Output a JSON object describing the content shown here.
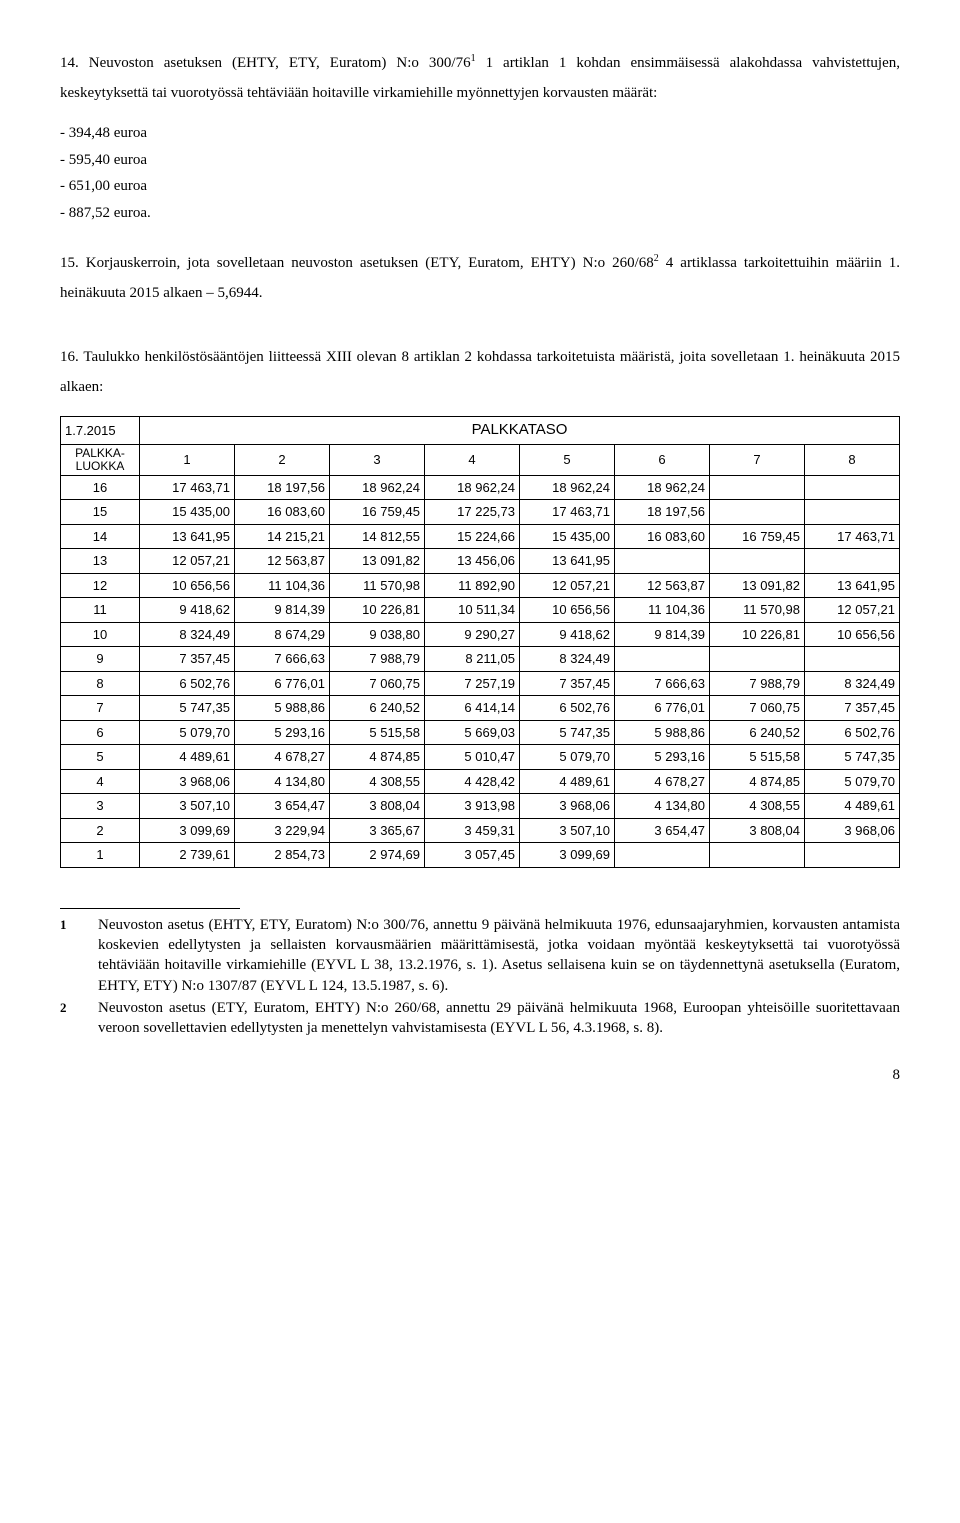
{
  "section14": {
    "text": "14. Neuvoston asetuksen (EHTY, ETY, Euratom) N:o 300/76¹ 1 artiklan 1 kohdan ensimmäisessä alakohdassa vahvistettujen, keskeytyksettä tai vuorotyössä tehtäviään hoitaville virkamiehille myönnettyjen korvausten määrät:"
  },
  "amounts": [
    "- 394,48 euroa",
    "- 595,40 euroa",
    "- 651,00 euroa",
    "- 887,52 euroa."
  ],
  "section15": {
    "text": "15. Korjauskerroin, jota sovelletaan neuvoston asetuksen (ETY, Euratom, EHTY) N:o 260/68² 4 artiklassa tarkoitettuihin määriin 1. heinäkuuta 2015 alkaen – 5,6944."
  },
  "section16": {
    "text": "16. Taulukko henkilöstösääntöjen liitteessä XIII olevan 8 artiklan 2 kohdassa tarkoitetuista määristä, joita sovelletaan 1. heinäkuuta 2015 alkaen:"
  },
  "table": {
    "date": "1.7.2015",
    "title": "PALKKATASO",
    "gradeLabel1": "PALKKA-",
    "gradeLabel2": "LUOKKA",
    "cols": [
      "1",
      "2",
      "3",
      "4",
      "5",
      "6",
      "7",
      "8"
    ],
    "rows": [
      {
        "g": "16",
        "c": [
          "17 463,71",
          "18 197,56",
          "18 962,24",
          "18 962,24",
          "18 962,24",
          "18 962,24",
          "",
          ""
        ]
      },
      {
        "g": "15",
        "c": [
          "15 435,00",
          "16 083,60",
          "16 759,45",
          "17 225,73",
          "17 463,71",
          "18 197,56",
          "",
          ""
        ]
      },
      {
        "g": "14",
        "c": [
          "13 641,95",
          "14 215,21",
          "14 812,55",
          "15 224,66",
          "15 435,00",
          "16 083,60",
          "16 759,45",
          "17 463,71"
        ]
      },
      {
        "g": "13",
        "c": [
          "12 057,21",
          "12 563,87",
          "13 091,82",
          "13 456,06",
          "13 641,95",
          "",
          "",
          ""
        ]
      },
      {
        "g": "12",
        "c": [
          "10 656,56",
          "11 104,36",
          "11 570,98",
          "11 892,90",
          "12 057,21",
          "12 563,87",
          "13 091,82",
          "13 641,95"
        ]
      },
      {
        "g": "11",
        "c": [
          "9 418,62",
          "9 814,39",
          "10 226,81",
          "10 511,34",
          "10 656,56",
          "11 104,36",
          "11 570,98",
          "12 057,21"
        ]
      },
      {
        "g": "10",
        "c": [
          "8 324,49",
          "8 674,29",
          "9 038,80",
          "9 290,27",
          "9 418,62",
          "9 814,39",
          "10 226,81",
          "10 656,56"
        ]
      },
      {
        "g": "9",
        "c": [
          "7 357,45",
          "7 666,63",
          "7 988,79",
          "8 211,05",
          "8 324,49",
          "",
          "",
          ""
        ]
      },
      {
        "g": "8",
        "c": [
          "6 502,76",
          "6 776,01",
          "7 060,75",
          "7 257,19",
          "7 357,45",
          "7 666,63",
          "7 988,79",
          "8 324,49"
        ]
      },
      {
        "g": "7",
        "c": [
          "5 747,35",
          "5 988,86",
          "6 240,52",
          "6 414,14",
          "6 502,76",
          "6 776,01",
          "7 060,75",
          "7 357,45"
        ]
      },
      {
        "g": "6",
        "c": [
          "5 079,70",
          "5 293,16",
          "5 515,58",
          "5 669,03",
          "5 747,35",
          "5 988,86",
          "6 240,52",
          "6 502,76"
        ]
      },
      {
        "g": "5",
        "c": [
          "4 489,61",
          "4 678,27",
          "4 874,85",
          "5 010,47",
          "5 079,70",
          "5 293,16",
          "5 515,58",
          "5 747,35"
        ]
      },
      {
        "g": "4",
        "c": [
          "3 968,06",
          "4 134,80",
          "4 308,55",
          "4 428,42",
          "4 489,61",
          "4 678,27",
          "4 874,85",
          "5 079,70"
        ]
      },
      {
        "g": "3",
        "c": [
          "3 507,10",
          "3 654,47",
          "3 808,04",
          "3 913,98",
          "3 968,06",
          "4 134,80",
          "4 308,55",
          "4 489,61"
        ]
      },
      {
        "g": "2",
        "c": [
          "3 099,69",
          "3 229,94",
          "3 365,67",
          "3 459,31",
          "3 507,10",
          "3 654,47",
          "3 808,04",
          "3 968,06"
        ]
      },
      {
        "g": "1",
        "c": [
          "2 739,61",
          "2 854,73",
          "2 974,69",
          "3 057,45",
          "3 099,69",
          "",
          "",
          ""
        ]
      }
    ]
  },
  "footnotes": {
    "n1": "1",
    "t1": "Neuvoston asetus (EHTY, ETY, Euratom) N:o 300/76, annettu 9 päivänä helmikuuta 1976, edunsaajaryhmien, korvausten antamista koskevien edellytysten ja sellaisten korvausmäärien määrittämisestä, jotka voidaan myöntää keskeytyksettä tai vuorotyössä tehtäviään hoitaville virkamiehille (EYVL L 38, 13.2.1976, s. 1). Asetus sellaisena kuin se on täydennettynä asetuksella (Euratom, EHTY, ETY) N:o 1307/87 (EYVL L 124, 13.5.1987, s. 6).",
    "n2": "2",
    "t2": "Neuvoston asetus (ETY, Euratom, EHTY) N:o 260/68, annettu 29 päivänä helmikuuta 1968, Euroopan yhteisöille suoritettavaan veroon sovellettavien edellytysten ja menettelyn vahvistamisesta (EYVL L 56, 4.3.1968, s. 8)."
  },
  "pageNumber": "8"
}
